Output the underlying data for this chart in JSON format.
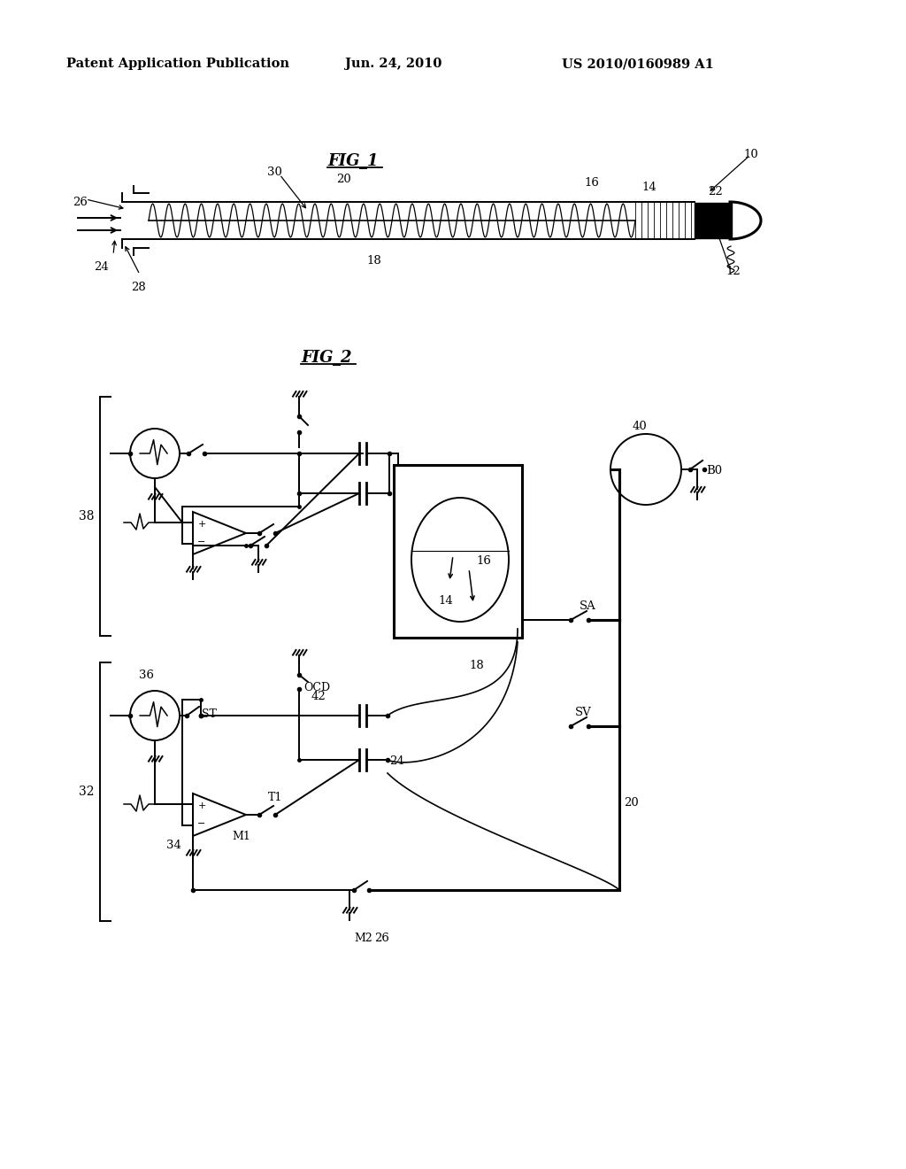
{
  "bg_color": "#ffffff",
  "header_left": "Patent Application Publication",
  "header_center": "Jun. 24, 2010",
  "header_right": "US 2010/0160989 A1"
}
